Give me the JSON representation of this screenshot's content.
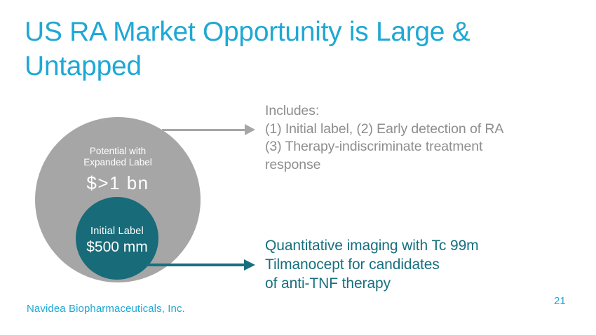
{
  "slide": {
    "title_lines": [
      "US RA Market Opportunity is Large &",
      "Untapped"
    ]
  },
  "diagram": {
    "outer_circle": {
      "label_lines": [
        "Potential with",
        "Expanded Label"
      ],
      "value": "$>1 bn",
      "color": "#A6A6A6"
    },
    "inner_circle": {
      "label": "Initial Label",
      "value": "$500 mm",
      "color": "#186B79"
    }
  },
  "annotations": {
    "includes": {
      "color": "#8E8E8E",
      "lines": [
        "Includes:",
        "(1) Initial label, (2) Early detection of RA",
        "(3) Therapy-indiscriminate treatment",
        "response"
      ]
    },
    "quantitative": {
      "color": "#16707F",
      "lines": [
        "Quantitative imaging with Tc 99m",
        "Tilmanocept for candidates",
        "of anti-TNF therapy"
      ]
    }
  },
  "footer": {
    "company": "Navidea Biopharmaceuticals, Inc.",
    "page_number": "21"
  },
  "colors": {
    "accent_cyan": "#1FA8D4",
    "gray": "#A6A6A6",
    "teal_dark": "#186B79",
    "teal_text": "#16707F",
    "text_gray": "#8E8E8E"
  }
}
